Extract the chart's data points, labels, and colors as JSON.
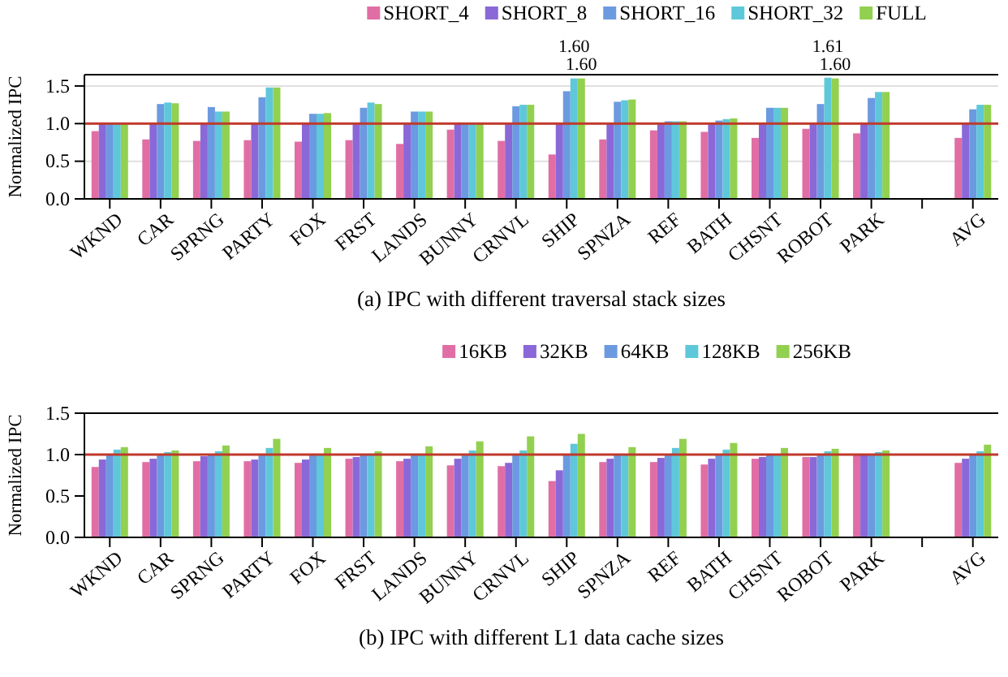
{
  "chart_data": [
    {
      "type": "bar",
      "title": "(a) IPC with different traversal stack sizes",
      "ylabel": "Normalized IPC",
      "categories": [
        "WKND",
        "CAR",
        "SPRNG",
        "PARTY",
        "FOX",
        "FRST",
        "LANDS",
        "BUNNY",
        "CRNVL",
        "SHIP",
        "SPNZA",
        "REF",
        "BATH",
        "CHSNT",
        "ROBOT",
        "PARK",
        null,
        "AVG"
      ],
      "ylim": [
        0,
        1.65
      ],
      "yticks": [
        {
          "value": 0,
          "label": "0.0"
        },
        {
          "value": 0.5,
          "label": "0.5"
        },
        {
          "value": 1,
          "label": "1.0"
        },
        {
          "value": 1.5,
          "label": "1.5"
        }
      ],
      "grid": "y",
      "legend": "top",
      "ref_lines": [
        {
          "axis": "y",
          "value": 1,
          "color": "#c0392b"
        }
      ],
      "series": [
        {
          "name": "SHORT_4",
          "color": "#e06ea5",
          "values": [
            0.9,
            0.79,
            0.77,
            0.78,
            0.76,
            0.78,
            0.73,
            0.92,
            0.77,
            0.59,
            0.79,
            0.91,
            0.89,
            0.81,
            0.93,
            0.87,
            null,
            0.81
          ]
        },
        {
          "name": "SHORT_8",
          "color": "#8a68d8",
          "values": [
            1,
            1,
            1,
            1,
            1,
            1,
            1,
            1,
            1,
            1,
            1,
            1,
            1,
            1,
            1,
            1,
            null,
            1
          ]
        },
        {
          "name": "SHORT_16",
          "color": "#6c9ae0",
          "values": [
            1,
            1.26,
            1.22,
            1.35,
            1.13,
            1.21,
            1.16,
            1,
            1.23,
            1.43,
            1.29,
            1.03,
            1.04,
            1.21,
            1.26,
            1.34,
            null,
            1.19
          ]
        },
        {
          "name": "SHORT_32",
          "color": "#5ec8da",
          "values": [
            1,
            1.28,
            1.16,
            1.48,
            1.13,
            1.28,
            1.16,
            1,
            1.25,
            1.6,
            1.31,
            1.03,
            1.06,
            1.21,
            1.61,
            1.42,
            null,
            1.25
          ],
          "value_labels": [
            null,
            null,
            null,
            null,
            null,
            null,
            null,
            null,
            null,
            "1.60",
            null,
            null,
            null,
            null,
            "1.61",
            null,
            null,
            null
          ]
        },
        {
          "name": "FULL",
          "color": "#92d050",
          "values": [
            1,
            1.27,
            1.16,
            1.48,
            1.14,
            1.26,
            1.16,
            1,
            1.25,
            1.6,
            1.32,
            1.03,
            1.07,
            1.21,
            1.6,
            1.42,
            null,
            1.25
          ],
          "value_labels": [
            null,
            null,
            null,
            null,
            null,
            null,
            null,
            null,
            null,
            "1.60",
            null,
            null,
            null,
            null,
            "1.60",
            null,
            null,
            null
          ]
        }
      ]
    },
    {
      "type": "bar",
      "title": "(b) IPC with different L1 data cache sizes",
      "ylabel": "Normalized IPC",
      "categories": [
        "WKND",
        "CAR",
        "SPRNG",
        "PARTY",
        "FOX",
        "FRST",
        "LANDS",
        "BUNNY",
        "CRNVL",
        "SHIP",
        "SPNZA",
        "REF",
        "BATH",
        "CHSNT",
        "ROBOT",
        "PARK",
        null,
        "AVG"
      ],
      "ylim": [
        0,
        1.5
      ],
      "yticks": [
        {
          "value": 0,
          "label": "0.0"
        },
        {
          "value": 0.5,
          "label": "0.5"
        },
        {
          "value": 1,
          "label": "1.0"
        },
        {
          "value": 1.5,
          "label": "1.5"
        }
      ],
      "legend": "top",
      "ref_lines": [
        {
          "axis": "y",
          "value": 1,
          "color": "#c0392b"
        }
      ],
      "series": [
        {
          "name": "16KB",
          "color": "#e06ea5",
          "values": [
            0.85,
            0.91,
            0.92,
            0.92,
            0.9,
            0.95,
            0.92,
            0.87,
            0.86,
            0.68,
            0.91,
            0.91,
            0.88,
            0.95,
            0.97,
            1,
            null,
            0.9
          ]
        },
        {
          "name": "32KB",
          "color": "#8a68d8",
          "values": [
            0.94,
            0.95,
            0.98,
            0.94,
            0.94,
            0.97,
            0.95,
            0.95,
            0.9,
            0.81,
            0.95,
            0.96,
            0.95,
            0.97,
            0.97,
            1,
            null,
            0.95
          ]
        },
        {
          "name": "64KB",
          "color": "#6c9ae0",
          "values": [
            1,
            1,
            1,
            1,
            1,
            1,
            1,
            1,
            1,
            1,
            1,
            1,
            1,
            1,
            1,
            1,
            null,
            1
          ]
        },
        {
          "name": "128KB",
          "color": "#5ec8da",
          "values": [
            1.06,
            1.03,
            1.04,
            1.08,
            1,
            1,
            1,
            1.05,
            1.05,
            1.13,
            1,
            1.08,
            1.06,
            1,
            1.04,
            1.03,
            null,
            1.04
          ]
        },
        {
          "name": "256KB",
          "color": "#92d050",
          "values": [
            1.09,
            1.05,
            1.11,
            1.19,
            1.08,
            1.04,
            1.1,
            1.16,
            1.22,
            1.25,
            1.09,
            1.19,
            1.14,
            1.08,
            1.07,
            1.05,
            null,
            1.12
          ]
        }
      ]
    }
  ]
}
